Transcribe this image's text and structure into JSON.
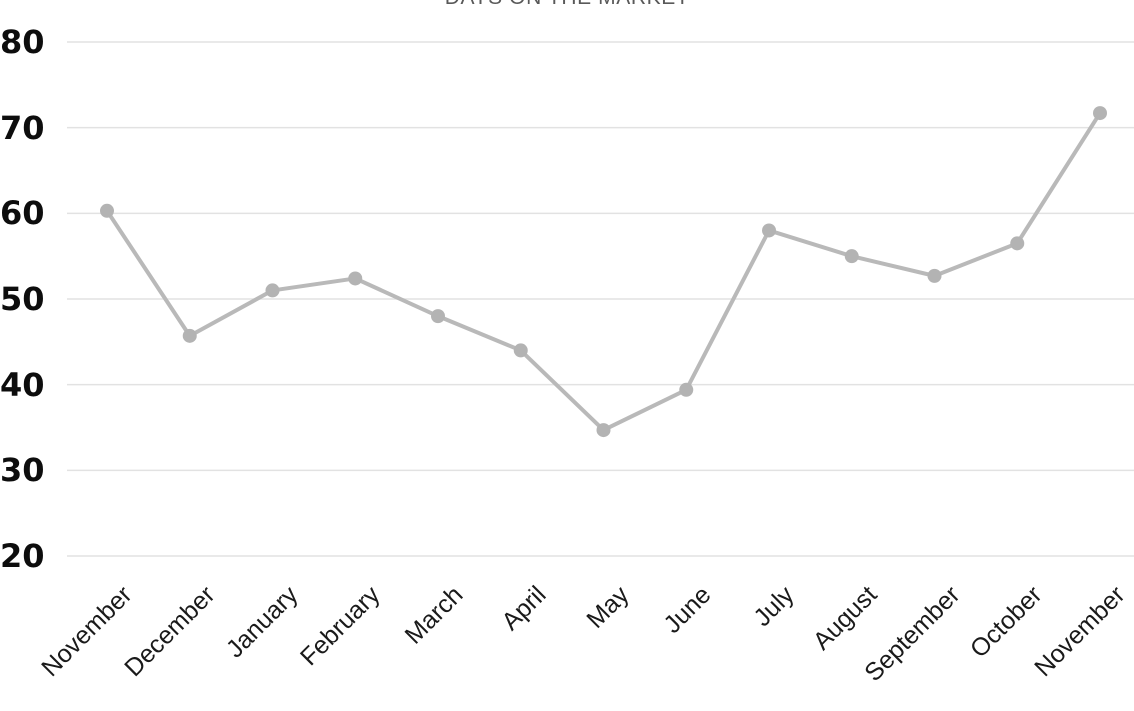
{
  "chart_data": {
    "type": "line",
    "title": "DAYS ON THE MARKET",
    "categories": [
      "November",
      "December",
      "January",
      "February",
      "March",
      "April",
      "May",
      "June",
      "July",
      "August",
      "September",
      "October",
      "November"
    ],
    "values": [
      60.3,
      45.7,
      51.0,
      52.4,
      48.0,
      44.0,
      34.7,
      39.4,
      58.0,
      55.0,
      52.7,
      56.5,
      71.7
    ],
    "yticks": [
      80,
      70,
      60,
      50,
      40,
      30,
      20
    ],
    "ylim": [
      20,
      80
    ],
    "xlabel": "",
    "ylabel": "",
    "grid": true,
    "legend": false,
    "colors": {
      "line": "#b9b9b9",
      "marker": "#b3b3b3",
      "gridline": "#e2e2e2",
      "y_tick_label": "#0d0d0d",
      "x_tick_label": "#1a1a1a",
      "title": "#595959"
    }
  }
}
